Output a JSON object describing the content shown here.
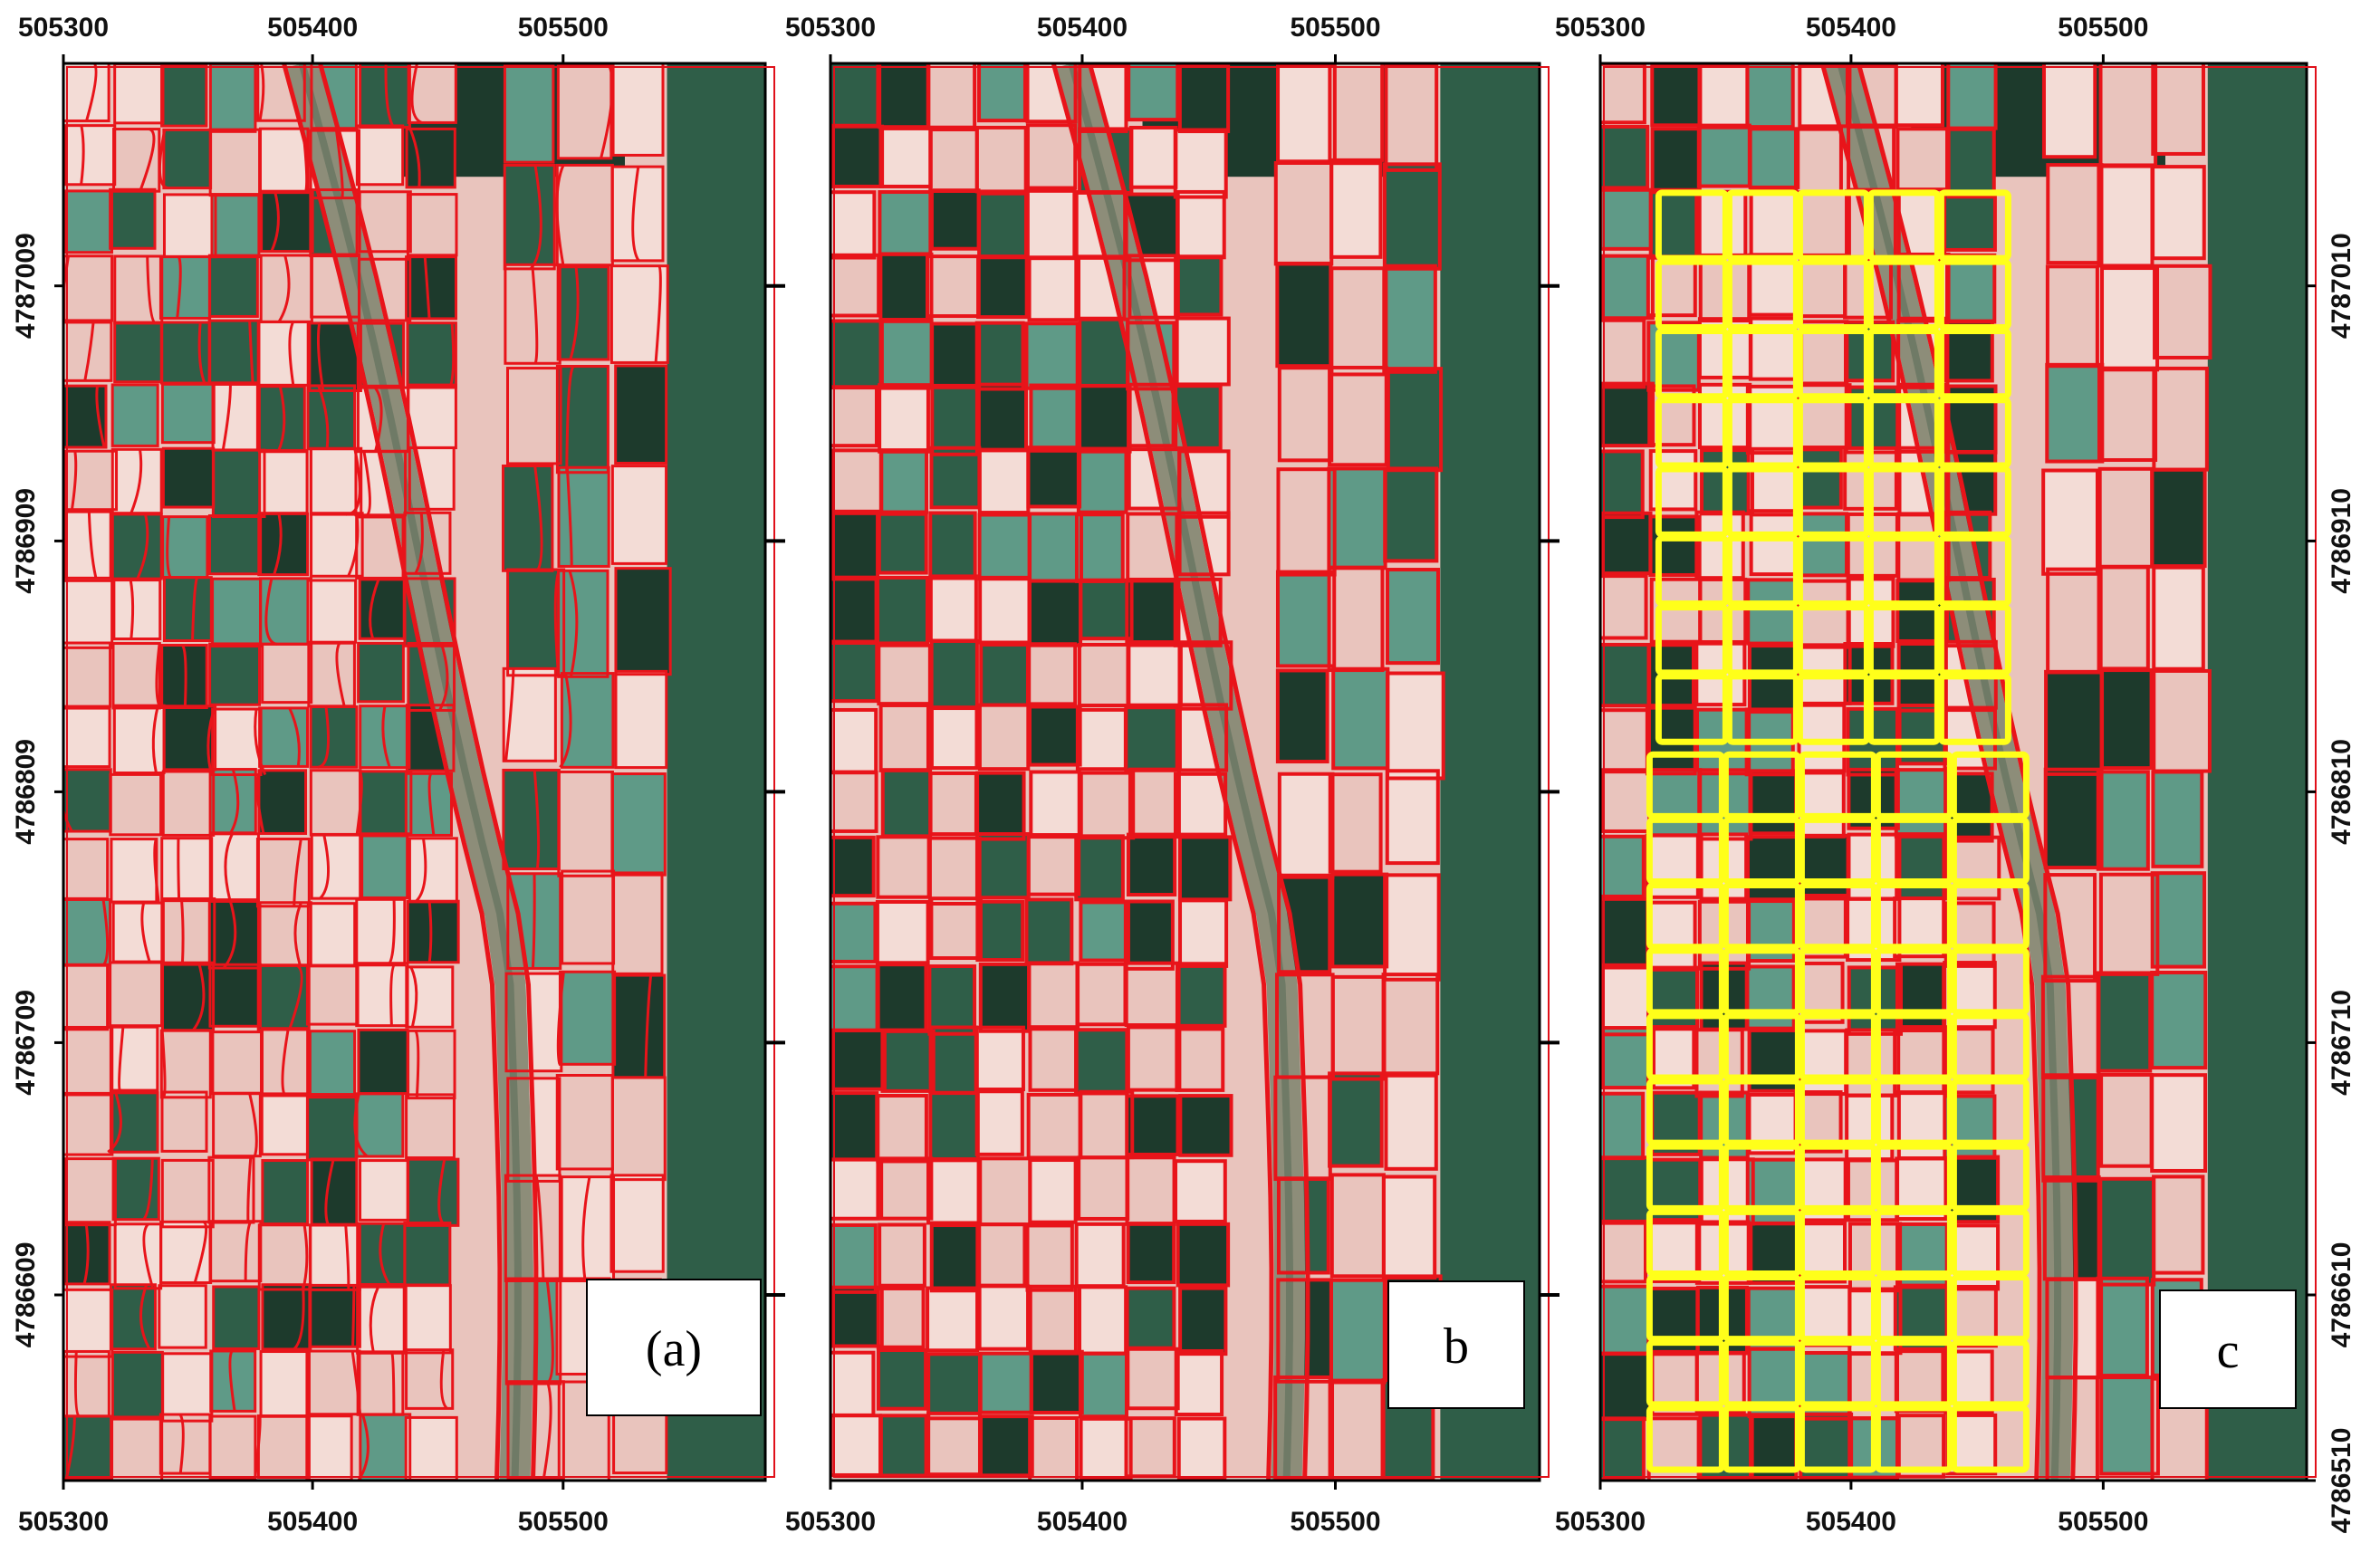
{
  "figure": {
    "panels": [
      {
        "id": "a",
        "label": "(a)",
        "y_axis_side": "left",
        "x_ticks": [
          "505300",
          "505400",
          "505500"
        ],
        "y_ticks": [
          "4787009",
          "4786909",
          "4786809",
          "4786709",
          "4786609"
        ],
        "boundary_style": "dense, fragmented red segment boundaries",
        "highlight": false
      },
      {
        "id": "b",
        "label": "b",
        "y_axis_side": "none",
        "x_ticks": [
          "505300",
          "505400",
          "505500"
        ],
        "y_ticks": [],
        "boundary_style": "smoother red field-shaped segment boundaries",
        "highlight": false
      },
      {
        "id": "c",
        "label": "c",
        "y_axis_side": "right",
        "x_ticks": [
          "505300",
          "505400",
          "505500"
        ],
        "y_ticks": [
          "4787010",
          "4786910",
          "4786810",
          "4786710",
          "4786610",
          "4786510"
        ],
        "boundary_style": "red segment boundaries with yellow reference field outlines",
        "highlight": true
      }
    ],
    "colors": {
      "segment_boundary": "#e8141a",
      "reference_boundary": "#ffff1a",
      "bare_field": "#e9c4bd",
      "bright_field": "#f3dcd6",
      "vegetation": "#2f5e48",
      "dark_vegetation": "#1d3a2c",
      "teal_field": "#5f9a87",
      "canal": "#8d8d79",
      "map_frame": "#000000",
      "panel_frame": "#e0101a"
    }
  }
}
